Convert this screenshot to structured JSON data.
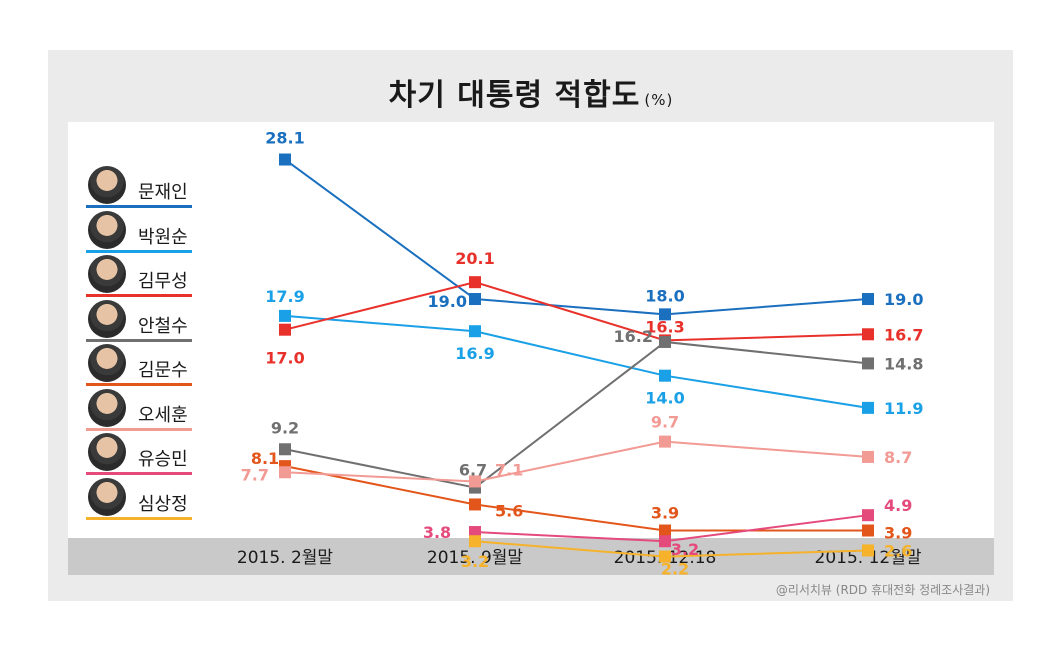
{
  "title": "차기 대통령 적합도",
  "title_unit": "(%)",
  "source": "@리서치뷰 (RDD 휴대전화 정례조사결과)",
  "chart_data": {
    "type": "line",
    "title": "차기 대통령 적합도",
    "unit": "%",
    "categories": [
      "2015. 2월말",
      "2015. 9월말",
      "2015. 12.18",
      "2015. 12월말"
    ],
    "ylim": [
      0,
      30
    ],
    "grid": false,
    "legend_position": "left",
    "series": [
      {
        "name": "문재인",
        "color": "#1a6fbf",
        "values": [
          28.1,
          19.0,
          18.0,
          19.0
        ]
      },
      {
        "name": "박원순",
        "color": "#1aa0e6",
        "values": [
          17.9,
          16.9,
          14.0,
          11.9
        ]
      },
      {
        "name": "김무성",
        "color": "#e8312b",
        "values": [
          17.0,
          20.1,
          16.3,
          16.7
        ]
      },
      {
        "name": "안철수",
        "color": "#707070",
        "values": [
          9.2,
          6.7,
          16.2,
          14.8
        ]
      },
      {
        "name": "김문수",
        "color": "#e3561b",
        "values": [
          8.1,
          5.6,
          3.9,
          3.9
        ]
      },
      {
        "name": "오세훈",
        "color": "#f29a94",
        "values": [
          7.7,
          7.1,
          9.7,
          8.7
        ]
      },
      {
        "name": "유승민",
        "color": "#e54a7c",
        "values": [
          null,
          3.8,
          3.2,
          4.9
        ]
      },
      {
        "name": "심상정",
        "color": "#f6b22a",
        "values": [
          null,
          3.2,
          2.2,
          2.6
        ]
      }
    ]
  }
}
